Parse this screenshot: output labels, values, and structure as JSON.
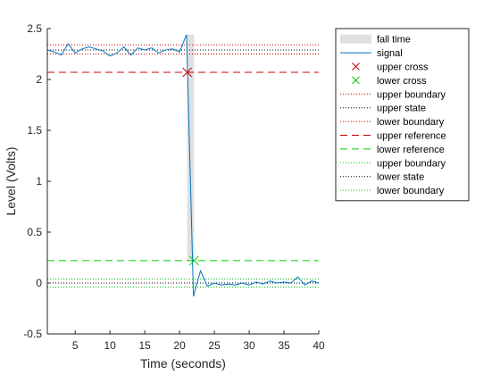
{
  "chart_data": {
    "type": "line",
    "title": "",
    "xlabel": "Time (seconds)",
    "ylabel": "Level (Volts)",
    "xlim": [
      1,
      40
    ],
    "ylim": [
      -0.5,
      2.5
    ],
    "grid": false,
    "legend_position": "outside-top-right",
    "x_ticks": [
      5,
      10,
      15,
      20,
      25,
      30,
      35,
      40
    ],
    "y_ticks": [
      -0.5,
      0,
      0.5,
      1,
      1.5,
      2,
      2.5
    ],
    "x_tick_labels": [
      "5",
      "10",
      "15",
      "20",
      "25",
      "30",
      "35",
      "40"
    ],
    "y_tick_labels": [
      "-0.5",
      "0",
      "0.5",
      "1",
      "1.5",
      "2",
      "2.5"
    ],
    "fall_time": {
      "name": "fall time",
      "x_start": 21.1,
      "x_end": 22.1,
      "color": "#e0e0e0"
    },
    "signal": {
      "name": "signal",
      "color": "#0072bd",
      "x": [
        1,
        2,
        3,
        4,
        5,
        6,
        7,
        8,
        9,
        10,
        11,
        12,
        13,
        14,
        15,
        16,
        17,
        18,
        19,
        20,
        21,
        22,
        23,
        24,
        25,
        26,
        27,
        28,
        29,
        30,
        31,
        32,
        33,
        34,
        35,
        36,
        37,
        38,
        39,
        40
      ],
      "y": [
        2.29,
        2.27,
        2.24,
        2.35,
        2.26,
        2.3,
        2.32,
        2.3,
        2.28,
        2.23,
        2.26,
        2.32,
        2.24,
        2.31,
        2.29,
        2.31,
        2.26,
        2.29,
        2.3,
        2.27,
        2.44,
        -0.13,
        0.12,
        -0.03,
        0.0,
        -0.02,
        -0.01,
        -0.02,
        0.0,
        -0.02,
        0.01,
        -0.01,
        0.02,
        0.0,
        0.01,
        0.0,
        0.06,
        -0.02,
        0.02,
        0.0
      ]
    },
    "upper_cross": {
      "name": "upper cross",
      "x": 21.1,
      "y": 2.07,
      "color": "#cc0000"
    },
    "lower_cross": {
      "name": "lower cross",
      "x": 22.1,
      "y": 0.22,
      "color": "#00cc00"
    },
    "horizontal_lines": [
      {
        "name": "upper boundary",
        "y": 2.34,
        "color": "#cc0000",
        "style": "dotted"
      },
      {
        "name": "upper state",
        "y": 2.29,
        "color": "#000000",
        "style": "dotted"
      },
      {
        "name": "lower boundary",
        "y": 2.25,
        "color": "#cc0000",
        "style": "dotted"
      },
      {
        "name": "upper reference",
        "y": 2.07,
        "color": "#cc0000",
        "style": "dashed"
      },
      {
        "name": "lower reference",
        "y": 0.22,
        "color": "#00cc00",
        "style": "dashed"
      },
      {
        "name": "upper boundary",
        "y": 0.04,
        "color": "#00cc00",
        "style": "dotted"
      },
      {
        "name": "lower state",
        "y": 0.0,
        "color": "#000000",
        "style": "dotted"
      },
      {
        "name": "lower boundary",
        "y": -0.04,
        "color": "#00cc00",
        "style": "dotted"
      }
    ],
    "legend": [
      {
        "label": "fall time",
        "kind": "patch",
        "color": "#e0e0e0"
      },
      {
        "label": "signal",
        "kind": "line",
        "color": "#0072bd"
      },
      {
        "label": "upper cross",
        "kind": "xmark",
        "color": "#cc0000"
      },
      {
        "label": "lower cross",
        "kind": "xmark",
        "color": "#00cc00"
      },
      {
        "label": "upper boundary",
        "kind": "dotted",
        "color": "#cc0000"
      },
      {
        "label": "upper state",
        "kind": "dotted",
        "color": "#000000"
      },
      {
        "label": "lower boundary",
        "kind": "dotted",
        "color": "#cc0000"
      },
      {
        "label": "upper reference",
        "kind": "dashed",
        "color": "#cc0000"
      },
      {
        "label": "lower reference",
        "kind": "dashed",
        "color": "#00cc00"
      },
      {
        "label": "upper boundary",
        "kind": "dotted",
        "color": "#00cc00"
      },
      {
        "label": "lower state",
        "kind": "dotted",
        "color": "#000000"
      },
      {
        "label": "lower boundary",
        "kind": "dotted",
        "color": "#00cc00"
      }
    ]
  }
}
